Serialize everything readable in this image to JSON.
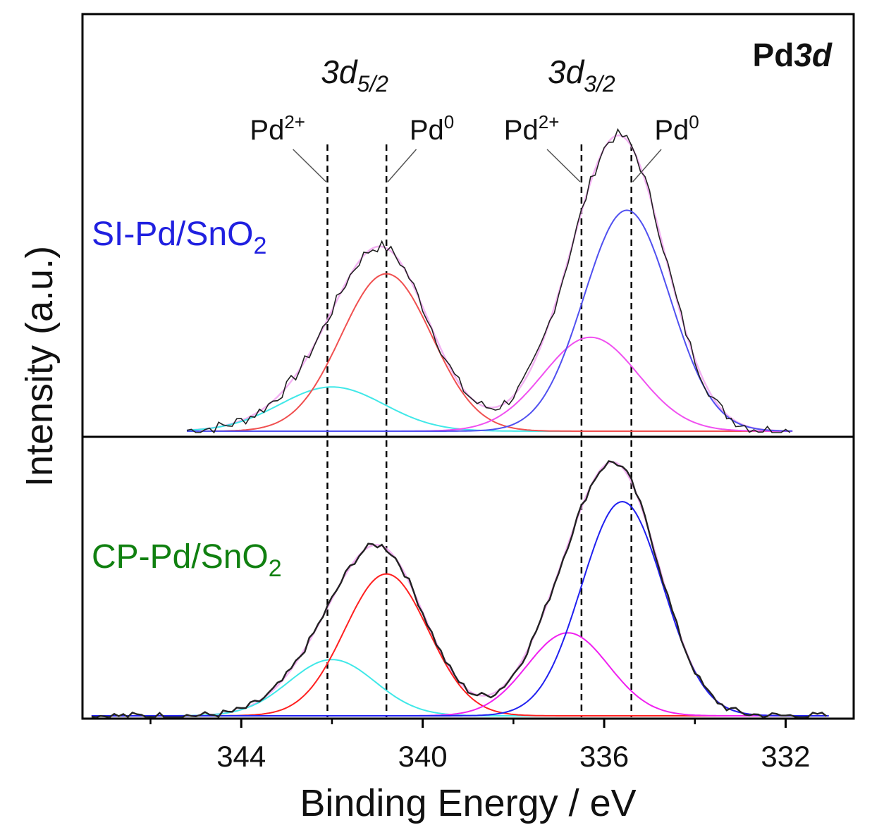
{
  "chart_data": {
    "type": "line",
    "title": "",
    "xlabel": "Binding Energy / eV",
    "ylabel": "Intensity (a.u.)",
    "xlim": [
      347.5,
      330.5
    ],
    "x_reversed": true,
    "x_ticks": [
      344,
      340,
      336,
      332
    ],
    "x_tick_labels": [
      "344",
      "340",
      "336",
      "332"
    ],
    "grid": false,
    "legend": "none",
    "corner_label": {
      "text": "Pd",
      "italic_part": "3d"
    },
    "peak_groups": [
      {
        "base": "3d",
        "sub": "5/2",
        "x_center": 341.5
      },
      {
        "base": "3d",
        "sub": "3/2",
        "x_center": 336.5
      }
    ],
    "reference_lines": [
      {
        "x": 342.1,
        "species_base": "Pd",
        "species_sup": "2+",
        "label_x": 343.2
      },
      {
        "x": 340.8,
        "species_base": "Pd",
        "species_sup": "0",
        "label_x": 339.8
      },
      {
        "x": 336.5,
        "species_base": "Pd",
        "species_sup": "2+",
        "label_x": 337.6
      },
      {
        "x": 335.4,
        "species_base": "Pd",
        "species_sup": "0",
        "label_x": 334.4
      }
    ],
    "panels": [
      {
        "name": "SI-Pd/SnO",
        "name_sub": "2",
        "label_color": "#2020e0",
        "x_range": [
          345.2,
          331.8
        ],
        "noise": 0.022,
        "line_width": 1.6,
        "components": [
          {
            "name": "Pd2+ 3d5/2",
            "center": 342.0,
            "height": 0.16,
            "sigma": 1.15,
            "color": "#40e8e8"
          },
          {
            "name": "Pd0 3d5/2",
            "center": 340.8,
            "height": 0.57,
            "sigma": 1.0,
            "color": "#f05050"
          },
          {
            "name": "Pd2+ 3d3/2",
            "center": 336.3,
            "height": 0.34,
            "sigma": 1.05,
            "color": "#f050f0"
          },
          {
            "name": "Pd0 3d3/2",
            "center": 335.5,
            "height": 0.8,
            "sigma": 0.95,
            "color": "#5050f0"
          }
        ]
      },
      {
        "name": "CP-Pd/SnO",
        "name_sub": "2",
        "label_color": "#108010",
        "x_range": [
          347.3,
          331.0
        ],
        "noise": 0.014,
        "line_width": 2.4,
        "components": [
          {
            "name": "Pd2+ 3d5/2",
            "center": 342.0,
            "height": 0.21,
            "sigma": 0.95,
            "color": "#40e8e8"
          },
          {
            "name": "Pd0 3d5/2",
            "center": 340.8,
            "height": 0.53,
            "sigma": 0.92,
            "color": "#ff2020"
          },
          {
            "name": "Pd2+ 3d3/2",
            "center": 336.8,
            "height": 0.31,
            "sigma": 0.9,
            "color": "#f020f0"
          },
          {
            "name": "Pd0 3d3/2",
            "center": 335.6,
            "height": 0.8,
            "sigma": 0.9,
            "color": "#2020f0"
          }
        ]
      }
    ]
  }
}
